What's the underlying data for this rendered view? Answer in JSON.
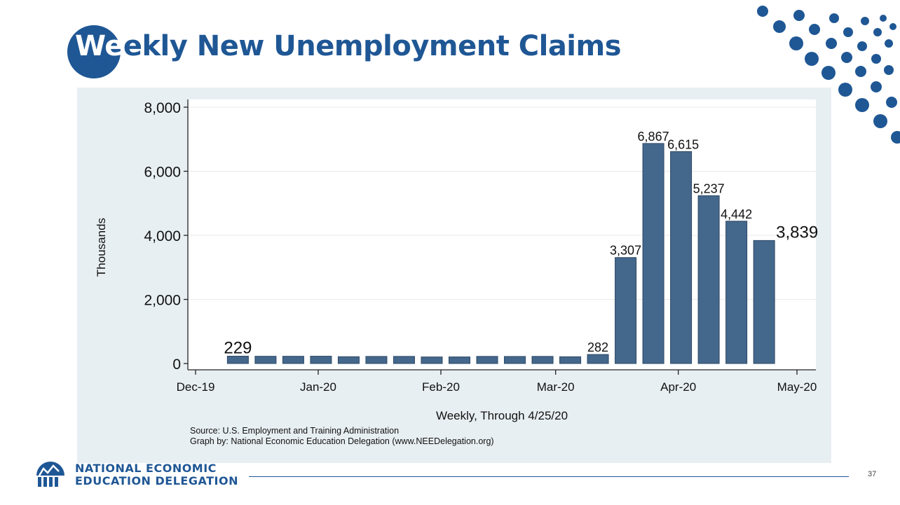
{
  "slide": {
    "title_first": "We",
    "title_rest": "ekly New Unemployment Claims",
    "page_number": "37",
    "org_line1": "NATIONAL ECONOMIC",
    "org_line2": "EDUCATION DELEGATION",
    "source_line1": "Source:  U.S. Employment and Training Administration",
    "source_line2": "Graph by: National Economic Education Delegation (www.NEEDelegation.org)",
    "colors": {
      "brand": "#1f5795",
      "bar": "#44678c",
      "panel": "#e8eff3",
      "plot_bg": "#ffffff"
    }
  },
  "chart_data": {
    "type": "bar",
    "title": "",
    "xlabel": "Weekly, Through 4/25/20",
    "ylabel": "Thousands",
    "ylim": [
      0,
      8000
    ],
    "yticks": [
      0,
      2000,
      4000,
      6000,
      8000
    ],
    "ytick_labels": [
      "0",
      "2,000",
      "4,000",
      "6,000",
      "8,000"
    ],
    "xlim": [
      "2019-12-01",
      "2020-05-01"
    ],
    "xticks": [
      {
        "date": "2019-12-01",
        "label": "Dec-19"
      },
      {
        "date": "2020-01-01",
        "label": "Jan-20"
      },
      {
        "date": "2020-02-01",
        "label": "Feb-20"
      },
      {
        "date": "2020-03-01",
        "label": "Mar-20"
      },
      {
        "date": "2020-04-01",
        "label": "Apr-20"
      },
      {
        "date": "2020-05-01",
        "label": "May-20"
      }
    ],
    "grid": true,
    "series": [
      {
        "points": [
          {
            "week_ending": "2019-12-14",
            "value": 229,
            "label": "229"
          },
          {
            "week_ending": "2019-12-21",
            "value": 226
          },
          {
            "week_ending": "2019-12-28",
            "value": 226
          },
          {
            "week_ending": "2020-01-04",
            "value": 228
          },
          {
            "week_ending": "2020-01-11",
            "value": 213
          },
          {
            "week_ending": "2020-01-18",
            "value": 221
          },
          {
            "week_ending": "2020-01-25",
            "value": 222
          },
          {
            "week_ending": "2020-02-01",
            "value": 205
          },
          {
            "week_ending": "2020-02-08",
            "value": 206
          },
          {
            "week_ending": "2020-02-15",
            "value": 222
          },
          {
            "week_ending": "2020-02-22",
            "value": 220
          },
          {
            "week_ending": "2020-02-29",
            "value": 222
          },
          {
            "week_ending": "2020-03-07",
            "value": 211
          },
          {
            "week_ending": "2020-03-14",
            "value": 282,
            "label": "282"
          },
          {
            "week_ending": "2020-03-21",
            "value": 3307,
            "label": "3,307"
          },
          {
            "week_ending": "2020-03-28",
            "value": 6867,
            "label": "6,867"
          },
          {
            "week_ending": "2020-04-04",
            "value": 6615,
            "label": "6,615"
          },
          {
            "week_ending": "2020-04-11",
            "value": 5237,
            "label": "5,237"
          },
          {
            "week_ending": "2020-04-18",
            "value": 4442,
            "label": "4,442"
          },
          {
            "week_ending": "2020-04-25",
            "value": 3839,
            "label": "3,839"
          }
        ]
      }
    ]
  }
}
